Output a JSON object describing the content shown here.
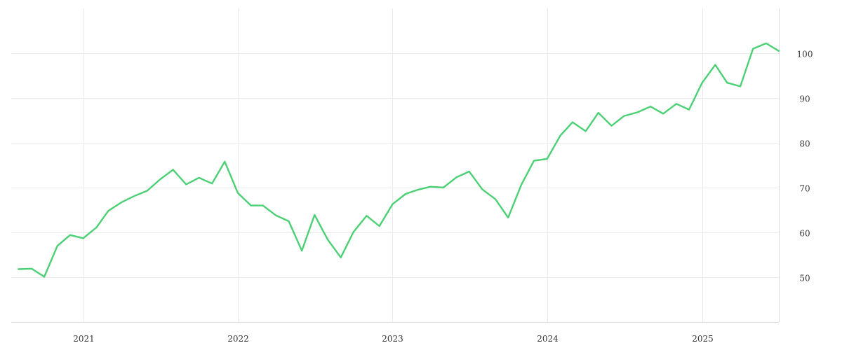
{
  "colors": {
    "series": "#4cd075",
    "grid": "#ebebeb",
    "text": "#333333"
  },
  "chart_data": {
    "type": "line",
    "title": "",
    "xlabel": "",
    "ylabel": "",
    "grid": true,
    "x_axis": {
      "type": "date",
      "range": [
        "2020-07-15",
        "2025-07-01"
      ],
      "ticks": [
        "2021-01-01",
        "2022-01-01",
        "2023-01-01",
        "2024-01-01",
        "2025-01-01"
      ],
      "tick_labels": [
        "2021",
        "2022",
        "2023",
        "2024",
        "2025"
      ]
    },
    "y_axis": {
      "position": "right",
      "range": [
        40,
        110
      ],
      "ticks": [
        50,
        60,
        70,
        80,
        90,
        100
      ],
      "tick_labels": [
        "50",
        "60",
        "70",
        "80",
        "90",
        "100"
      ]
    },
    "series": [
      {
        "color": "#4cd075",
        "x": [
          "2020-08",
          "2020-09",
          "2020-10",
          "2020-11",
          "2020-12",
          "2021-01",
          "2021-02",
          "2021-03",
          "2021-04",
          "2021-05",
          "2021-06",
          "2021-07",
          "2021-08",
          "2021-09",
          "2021-10",
          "2021-11",
          "2021-12",
          "2022-01",
          "2022-02",
          "2022-03",
          "2022-04",
          "2022-05",
          "2022-06",
          "2022-07",
          "2022-08",
          "2022-09",
          "2022-10",
          "2022-11",
          "2022-12",
          "2023-01",
          "2023-02",
          "2023-03",
          "2023-04",
          "2023-05",
          "2023-06",
          "2023-07",
          "2023-08",
          "2023-09",
          "2023-10",
          "2023-11",
          "2023-12",
          "2024-01",
          "2024-02",
          "2024-03",
          "2024-04",
          "2024-05",
          "2024-06",
          "2024-07",
          "2024-08",
          "2024-09",
          "2024-10",
          "2024-11",
          "2024-12",
          "2025-01",
          "2025-02",
          "2025-03",
          "2025-04",
          "2025-05",
          "2025-06",
          "2025-07"
        ],
        "y": [
          51.8,
          51.9,
          50.1,
          57.0,
          59.4,
          58.7,
          61.1,
          64.8,
          66.7,
          68.1,
          69.3,
          71.8,
          74.0,
          70.7,
          72.2,
          70.9,
          75.8,
          68.8,
          66.0,
          66.0,
          63.8,
          62.5,
          55.9,
          63.9,
          58.4,
          54.4,
          60.1,
          63.7,
          61.4,
          66.3,
          68.6,
          69.5,
          70.2,
          70.0,
          72.3,
          73.6,
          69.6,
          67.4,
          63.3,
          70.6,
          76.0,
          76.4,
          81.6,
          84.6,
          82.6,
          86.7,
          83.8,
          86.0,
          86.8,
          88.1,
          86.5,
          88.7,
          87.4,
          93.4,
          97.4,
          93.4,
          92.6,
          101.0,
          102.2,
          100.5
        ]
      }
    ]
  }
}
